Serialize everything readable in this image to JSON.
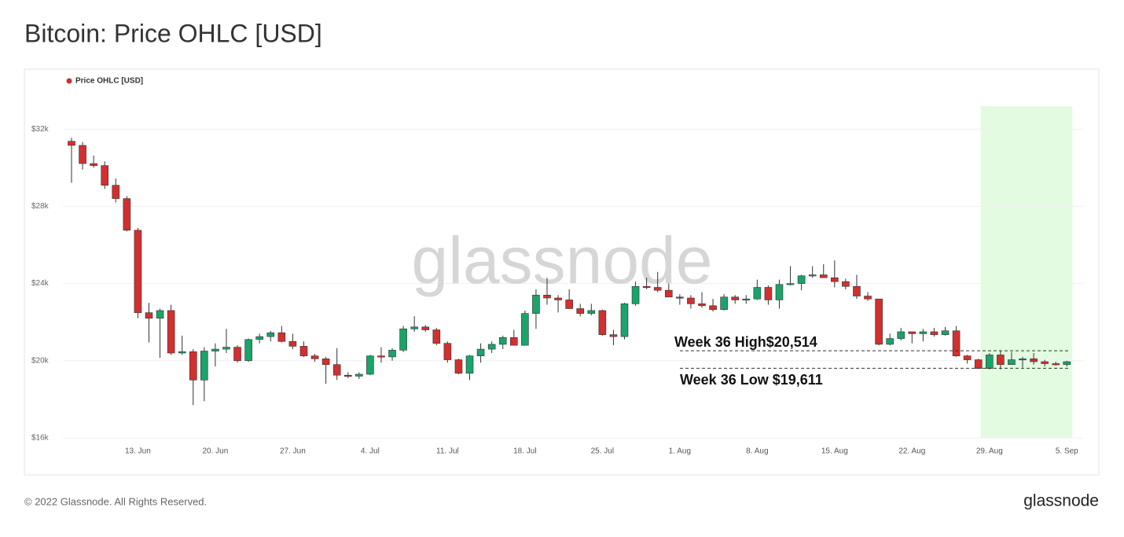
{
  "chart_data": {
    "type": "candlestick",
    "title": "Bitcoin: Price OHLC [USD]",
    "watermark": "glassnode",
    "footer": "© 2022 Glassnode. All Rights Reserved.",
    "brand": "glassnode",
    "categories": [
      null,
      null,
      null,
      null,
      null,
      null,
      "13. Jun",
      null,
      null,
      null,
      null,
      null,
      null,
      "20. Jun",
      null,
      null,
      null,
      null,
      null,
      null,
      "27. Jun",
      null,
      null,
      null,
      null,
      null,
      null,
      "4. Jul",
      null,
      null,
      null,
      null,
      null,
      null,
      "11. Jul",
      null,
      null,
      null,
      null,
      null,
      null,
      "18. Jul",
      null,
      null,
      null,
      null,
      null,
      null,
      "25. Jul",
      null,
      null,
      null,
      null,
      null,
      null,
      "1. Aug",
      null,
      null,
      null,
      null,
      null,
      null,
      "8. Aug",
      null,
      null,
      null,
      null,
      null,
      null,
      "15. Aug",
      null,
      null,
      null,
      null,
      null,
      null,
      "22. Aug",
      null,
      null,
      null,
      null,
      null,
      null,
      "29. Aug",
      null,
      null,
      null,
      null,
      null,
      null,
      "5. Sep"
    ],
    "series": [
      {
        "name": "Price OHLC [USD]",
        "color": "#d32f2f",
        "up_color": "#1aa36a",
        "down_color": "#d32f2f",
        "open": [
          31370,
          31155,
          30215,
          30110,
          29090,
          28400,
          26760,
          22490,
          22200,
          22600,
          20400,
          20470,
          19000,
          20500,
          20600,
          20700,
          20000,
          21100,
          21250,
          21450,
          21000,
          20750,
          20250,
          20100,
          19800,
          19250,
          19200,
          19300,
          20250,
          20200,
          20550,
          21650,
          21750,
          21600,
          20900,
          20050,
          19350,
          20250,
          20600,
          20850,
          21200,
          20800,
          22450,
          23400,
          23250,
          23150,
          22700,
          22450,
          22600,
          21350,
          21250,
          22950,
          23850,
          23800,
          23650,
          23300,
          23250,
          22950,
          22850,
          22650,
          23300,
          23150,
          23200,
          23800,
          23150,
          23950,
          24000,
          24400,
          24450,
          24300,
          24100,
          23850,
          23350,
          23200,
          20850,
          21150,
          21500,
          21400,
          21500,
          21350,
          21550,
          20250,
          20050,
          19600,
          20300,
          19800,
          20050,
          20100,
          19950,
          19850,
          19800
        ],
        "high": [
          31550,
          31330,
          30630,
          30330,
          29440,
          28530,
          26880,
          23000,
          22700,
          22900,
          21300,
          20600,
          20700,
          20900,
          21650,
          20800,
          21150,
          21400,
          21550,
          21800,
          21400,
          21000,
          20350,
          20200,
          20650,
          19400,
          19400,
          20300,
          20700,
          20650,
          21800,
          22300,
          21850,
          21700,
          21000,
          20100,
          20300,
          20900,
          21000,
          21300,
          21600,
          22600,
          23700,
          24300,
          23400,
          23700,
          22950,
          22950,
          22650,
          21600,
          23000,
          24100,
          24300,
          24600,
          24000,
          23450,
          23400,
          23550,
          23200,
          23450,
          23400,
          23400,
          24200,
          23900,
          24200,
          24900,
          24450,
          24900,
          25000,
          25200,
          24250,
          24450,
          23550,
          23200,
          21400,
          21700,
          21500,
          21650,
          21700,
          21750,
          21800,
          20300,
          20100,
          20400,
          20500,
          20450,
          20200,
          20400,
          20050,
          19950,
          20000
        ],
        "low": [
          29220,
          29900,
          30000,
          28900,
          28200,
          26700,
          22200,
          20950,
          20150,
          20300,
          20300,
          17700,
          17900,
          19700,
          20400,
          19900,
          19950,
          20900,
          21000,
          20950,
          20600,
          20200,
          19950,
          18800,
          19000,
          19100,
          19050,
          19250,
          19900,
          20000,
          20450,
          21500,
          21500,
          20800,
          19900,
          19300,
          19000,
          19900,
          20400,
          20600,
          20800,
          20800,
          21650,
          22900,
          22500,
          22700,
          22300,
          22350,
          21300,
          20800,
          21100,
          22850,
          23700,
          23550,
          23300,
          22900,
          22700,
          22750,
          22550,
          22600,
          22950,
          22950,
          23150,
          22900,
          22700,
          23900,
          23650,
          24300,
          24300,
          23800,
          23700,
          23200,
          23100,
          20800,
          20800,
          21050,
          20900,
          21000,
          21250,
          21300,
          20200,
          19850,
          19600,
          19550,
          19550,
          19800,
          19650,
          19800,
          19700,
          19750,
          19700
        ],
        "close": [
          31155,
          30215,
          30110,
          29090,
          28400,
          26760,
          22490,
          22200,
          22600,
          20400,
          20470,
          19000,
          20500,
          20600,
          20700,
          20000,
          21100,
          21250,
          21450,
          21000,
          20750,
          20250,
          20100,
          19800,
          19250,
          19200,
          19300,
          20250,
          20200,
          20550,
          21650,
          21750,
          21600,
          20900,
          20050,
          19350,
          20250,
          20600,
          20850,
          21200,
          20800,
          22450,
          23400,
          23250,
          23150,
          22700,
          22450,
          22600,
          21350,
          21250,
          22950,
          23850,
          23800,
          23650,
          23300,
          23250,
          22950,
          22850,
          22650,
          23300,
          23150,
          23200,
          23800,
          23150,
          23950,
          24000,
          24400,
          24450,
          24300,
          24100,
          23850,
          23350,
          23200,
          20850,
          21150,
          21500,
          21400,
          21500,
          21350,
          21550,
          20250,
          20050,
          19600,
          20300,
          19800,
          20050,
          20100,
          19950,
          19850,
          19800,
          19950
        ]
      }
    ],
    "ylim": [
      16000,
      33800
    ],
    "yticks": [
      {
        "value": 16000,
        "label": "$16k"
      },
      {
        "value": 20000,
        "label": "$20k"
      },
      {
        "value": 24000,
        "label": "$24k"
      },
      {
        "value": 28000,
        "label": "$28k"
      },
      {
        "value": 32000,
        "label": "$32k"
      }
    ],
    "grid": true,
    "highlight_range": [
      83,
      90
    ],
    "highlight_color": "#e3fbe0",
    "annotations": [
      {
        "label": "Week 36 High$20,514",
        "value": 20514
      },
      {
        "label": "Week 36 Low $19,611",
        "value": 19611
      }
    ]
  }
}
